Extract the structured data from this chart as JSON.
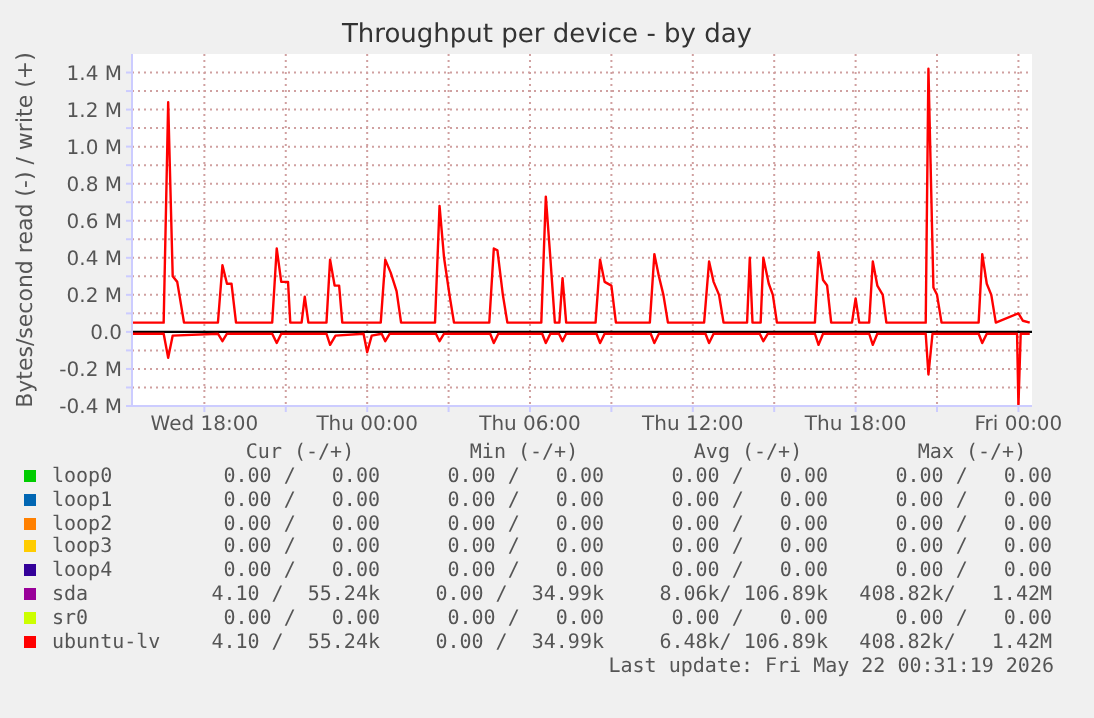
{
  "chart_data": {
    "type": "line",
    "title": "Throughput per device - by day",
    "ylabel": "Bytes/second read (-) / write (+)",
    "xlim": [
      "2026-05-20T15:20",
      "2026-05-22T00:30"
    ],
    "xticks": [
      {
        "value": "2026-05-20T18:00",
        "label": "Wed 18:00"
      },
      {
        "value": "2026-05-20T21:00",
        "label": null
      },
      {
        "value": "2026-05-21T00:00",
        "label": "Thu 00:00"
      },
      {
        "value": "2026-05-21T03:00",
        "label": null
      },
      {
        "value": "2026-05-21T06:00",
        "label": "Thu 06:00"
      },
      {
        "value": "2026-05-21T09:00",
        "label": null
      },
      {
        "value": "2026-05-21T12:00",
        "label": "Thu 12:00"
      },
      {
        "value": "2026-05-21T15:00",
        "label": null
      },
      {
        "value": "2026-05-21T18:00",
        "label": "Thu 18:00"
      },
      {
        "value": "2026-05-21T21:00",
        "label": null
      },
      {
        "value": "2026-05-22T00:00",
        "label": "Fri 00:00"
      }
    ],
    "ylim": [
      -0.4,
      1.5
    ],
    "yticks": [
      {
        "value": -0.4,
        "label": "-0.4 M"
      },
      {
        "value": -0.3,
        "label": null
      },
      {
        "value": -0.2,
        "label": "-0.2 M"
      },
      {
        "value": -0.1,
        "label": null
      },
      {
        "value": 0,
        "label": "0.0"
      },
      {
        "value": 0.1,
        "label": null
      },
      {
        "value": 0.2,
        "label": "0.2 M"
      },
      {
        "value": 0.3,
        "label": null
      },
      {
        "value": 0.4,
        "label": "0.4 M"
      },
      {
        "value": 0.5,
        "label": null
      },
      {
        "value": 0.6,
        "label": "0.6 M"
      },
      {
        "value": 0.7,
        "label": null
      },
      {
        "value": 0.8,
        "label": "0.8 M"
      },
      {
        "value": 0.9,
        "label": null
      },
      {
        "value": 1.0,
        "label": "1.0 M"
      },
      {
        "value": 1.1,
        "label": null
      },
      {
        "value": 1.2,
        "label": "1.2 M"
      },
      {
        "value": 1.3,
        "label": null
      },
      {
        "value": 1.4,
        "label": "1.4 M"
      }
    ],
    "grid": true,
    "legend": "bottom",
    "ref_lines": [
      {
        "axis": "y",
        "value": 0,
        "color": "#000000"
      }
    ],
    "annotations": [
      "Cur (-/+)",
      "Min (-/+)",
      "Avg (-/+)",
      "Max (-/+)",
      "0.00 /   0.00",
      "0.00 /   0.00",
      "0.00 /   0.00",
      "0.00 /   0.00",
      "0.00 /   0.00",
      "0.00 /   0.00",
      "0.00 /   0.00",
      "0.00 /   0.00",
      "0.00 /   0.00",
      "0.00 /   0.00",
      "0.00 /   0.00",
      "0.00 /   0.00",
      "0.00 /   0.00",
      "0.00 /   0.00",
      "0.00 /   0.00",
      "0.00 /   0.00",
      "0.00 /   0.00",
      "0.00 /   0.00",
      "0.00 /   0.00",
      "0.00 /   0.00",
      "4.10 /  55.24k",
      "0.00 /  34.99k",
      "8.06k/ 106.89k",
      "408.82k/   1.42M",
      "0.00 /   0.00",
      "0.00 /   0.00",
      "0.00 /   0.00",
      "0.00 /   0.00",
      "4.10 /  55.24k",
      "0.00 /  34.99k",
      "6.48k/ 106.89k",
      "408.82k/   1.42M",
      "Last update: Fri May 22 00:31:19 2026"
    ],
    "series": [
      {
        "name": "loop0",
        "color": "#00cc00"
      },
      {
        "name": "loop1",
        "color": "#0066b3"
      },
      {
        "name": "loop2",
        "color": "#ff8000"
      },
      {
        "name": "loop3",
        "color": "#ffcc00"
      },
      {
        "name": "loop4",
        "color": "#330099"
      },
      {
        "name": "sda",
        "color": "#990099"
      },
      {
        "name": "sr0",
        "color": "#ccff00"
      },
      {
        "name": "ubuntu-lv",
        "color": "#ff0000",
        "x": [
          "2026-05-20T15:20",
          "2026-05-20T16:30",
          "2026-05-20T16:40",
          "2026-05-20T16:50",
          "2026-05-20T17:00",
          "2026-05-20T17:15",
          "2026-05-20T18:30",
          "2026-05-20T18:40",
          "2026-05-20T18:50",
          "2026-05-20T19:00",
          "2026-05-20T19:10",
          "2026-05-20T20:30",
          "2026-05-20T20:40",
          "2026-05-20T20:50",
          "2026-05-20T21:05",
          "2026-05-20T21:10",
          "2026-05-20T21:35",
          "2026-05-20T21:42",
          "2026-05-20T21:50",
          "2026-05-20T22:30",
          "2026-05-20T22:38",
          "2026-05-20T22:48",
          "2026-05-20T22:58",
          "2026-05-20T23:05",
          "2026-05-21T00:30",
          "2026-05-21T00:40",
          "2026-05-21T00:52",
          "2026-05-21T01:05",
          "2026-05-21T01:15",
          "2026-05-21T02:30",
          "2026-05-21T02:40",
          "2026-05-21T02:50",
          "2026-05-21T03:02",
          "2026-05-21T03:12",
          "2026-05-21T04:30",
          "2026-05-21T04:40",
          "2026-05-21T04:48",
          "2026-05-21T05:00",
          "2026-05-21T05:10",
          "2026-05-21T06:25",
          "2026-05-21T06:35",
          "2026-05-21T06:45",
          "2026-05-21T06:55",
          "2026-05-21T07:05",
          "2026-05-21T07:12",
          "2026-05-21T07:20",
          "2026-05-21T08:25",
          "2026-05-21T08:35",
          "2026-05-21T08:45",
          "2026-05-21T09:00",
          "2026-05-21T09:10",
          "2026-05-21T10:25",
          "2026-05-21T10:35",
          "2026-05-21T10:45",
          "2026-05-21T10:55",
          "2026-05-21T11:05",
          "2026-05-21T12:25",
          "2026-05-21T12:36",
          "2026-05-21T12:46",
          "2026-05-21T12:58",
          "2026-05-21T13:08",
          "2026-05-21T14:00",
          "2026-05-21T14:06",
          "2026-05-21T14:12",
          "2026-05-21T14:30",
          "2026-05-21T14:36",
          "2026-05-21T14:48",
          "2026-05-21T14:57",
          "2026-05-21T15:06",
          "2026-05-21T16:30",
          "2026-05-21T16:38",
          "2026-05-21T16:48",
          "2026-05-21T16:57",
          "2026-05-21T17:06",
          "2026-05-21T17:52",
          "2026-05-21T18:00",
          "2026-05-21T18:08",
          "2026-05-21T18:30",
          "2026-05-21T18:38",
          "2026-05-21T18:48",
          "2026-05-21T19:00",
          "2026-05-21T19:08",
          "2026-05-21T20:35",
          "2026-05-21T20:41",
          "2026-05-21T20:52",
          "2026-05-21T21:00",
          "2026-05-21T21:10",
          "2026-05-21T22:32",
          "2026-05-21T22:40",
          "2026-05-21T22:50",
          "2026-05-21T23:00",
          "2026-05-21T23:10",
          "2026-05-22T00:00",
          "2026-05-22T00:10",
          "2026-05-22T00:25"
        ],
        "values": [
          0.05,
          0.05,
          1.24,
          0.3,
          0.27,
          0.05,
          0.05,
          0.36,
          0.26,
          0.26,
          0.05,
          0.05,
          0.45,
          0.27,
          0.27,
          0.05,
          0.05,
          0.19,
          0.05,
          0.05,
          0.39,
          0.25,
          0.25,
          0.05,
          0.05,
          0.39,
          0.32,
          0.22,
          0.05,
          0.05,
          0.68,
          0.4,
          0.2,
          0.05,
          0.05,
          0.45,
          0.44,
          0.2,
          0.05,
          0.05,
          0.73,
          0.4,
          0.05,
          0.05,
          0.29,
          0.05,
          0.05,
          0.39,
          0.27,
          0.25,
          0.05,
          0.05,
          0.42,
          0.3,
          0.2,
          0.05,
          0.05,
          0.38,
          0.27,
          0.2,
          0.05,
          0.05,
          0.4,
          0.05,
          0.05,
          0.4,
          0.26,
          0.2,
          0.05,
          0.05,
          0.43,
          0.28,
          0.25,
          0.05,
          0.05,
          0.18,
          0.05,
          0.05,
          0.38,
          0.25,
          0.2,
          0.05,
          0.05,
          1.42,
          0.24,
          0.2,
          0.05,
          0.05,
          0.42,
          0.26,
          0.2,
          0.05,
          0.1,
          0.06,
          0.05
        ]
      },
      {
        "color": "#ff0000",
        "x": [
          "2026-05-20T15:20",
          "2026-05-20T16:30",
          "2026-05-20T16:40",
          "2026-05-20T16:50",
          "2026-05-20T18:30",
          "2026-05-20T18:40",
          "2026-05-20T18:50",
          "2026-05-20T20:30",
          "2026-05-20T20:40",
          "2026-05-20T20:50",
          "2026-05-20T22:30",
          "2026-05-20T22:38",
          "2026-05-20T22:50",
          "2026-05-20T23:52",
          "2026-05-21T00:00",
          "2026-05-21T00:10",
          "2026-05-21T00:32",
          "2026-05-21T00:40",
          "2026-05-21T00:50",
          "2026-05-21T02:32",
          "2026-05-21T02:40",
          "2026-05-21T02:50",
          "2026-05-21T04:32",
          "2026-05-21T04:40",
          "2026-05-21T04:50",
          "2026-05-21T06:27",
          "2026-05-21T06:35",
          "2026-05-21T06:45",
          "2026-05-21T07:04",
          "2026-05-21T07:12",
          "2026-05-21T07:20",
          "2026-05-21T08:27",
          "2026-05-21T08:35",
          "2026-05-21T08:45",
          "2026-05-21T10:27",
          "2026-05-21T10:35",
          "2026-05-21T10:45",
          "2026-05-21T12:28",
          "2026-05-21T12:36",
          "2026-05-21T12:46",
          "2026-05-21T14:28",
          "2026-05-21T14:36",
          "2026-05-21T14:46",
          "2026-05-21T16:30",
          "2026-05-21T16:38",
          "2026-05-21T16:48",
          "2026-05-21T18:30",
          "2026-05-21T18:38",
          "2026-05-21T18:48",
          "2026-05-21T20:35",
          "2026-05-21T20:41",
          "2026-05-21T20:50",
          "2026-05-21T22:32",
          "2026-05-21T22:40",
          "2026-05-21T22:50",
          "2026-05-21T23:57",
          "2026-05-22T00:00",
          "2026-05-22T00:05",
          "2026-05-22T00:25"
        ],
        "values": [
          -0.01,
          -0.01,
          -0.14,
          -0.02,
          -0.01,
          -0.05,
          -0.01,
          -0.01,
          -0.06,
          -0.01,
          -0.01,
          -0.07,
          -0.02,
          -0.01,
          -0.11,
          -0.02,
          -0.01,
          -0.05,
          -0.01,
          -0.01,
          -0.05,
          -0.01,
          -0.01,
          -0.06,
          -0.01,
          -0.01,
          -0.06,
          -0.01,
          -0.01,
          -0.05,
          -0.01,
          -0.01,
          -0.06,
          -0.01,
          -0.01,
          -0.06,
          -0.01,
          -0.01,
          -0.06,
          -0.01,
          -0.01,
          -0.05,
          -0.01,
          -0.01,
          -0.07,
          -0.01,
          -0.01,
          -0.07,
          -0.01,
          -0.01,
          -0.23,
          -0.01,
          -0.01,
          -0.06,
          -0.01,
          -0.01,
          -0.4,
          -0.01,
          -0.01
        ]
      }
    ]
  }
}
